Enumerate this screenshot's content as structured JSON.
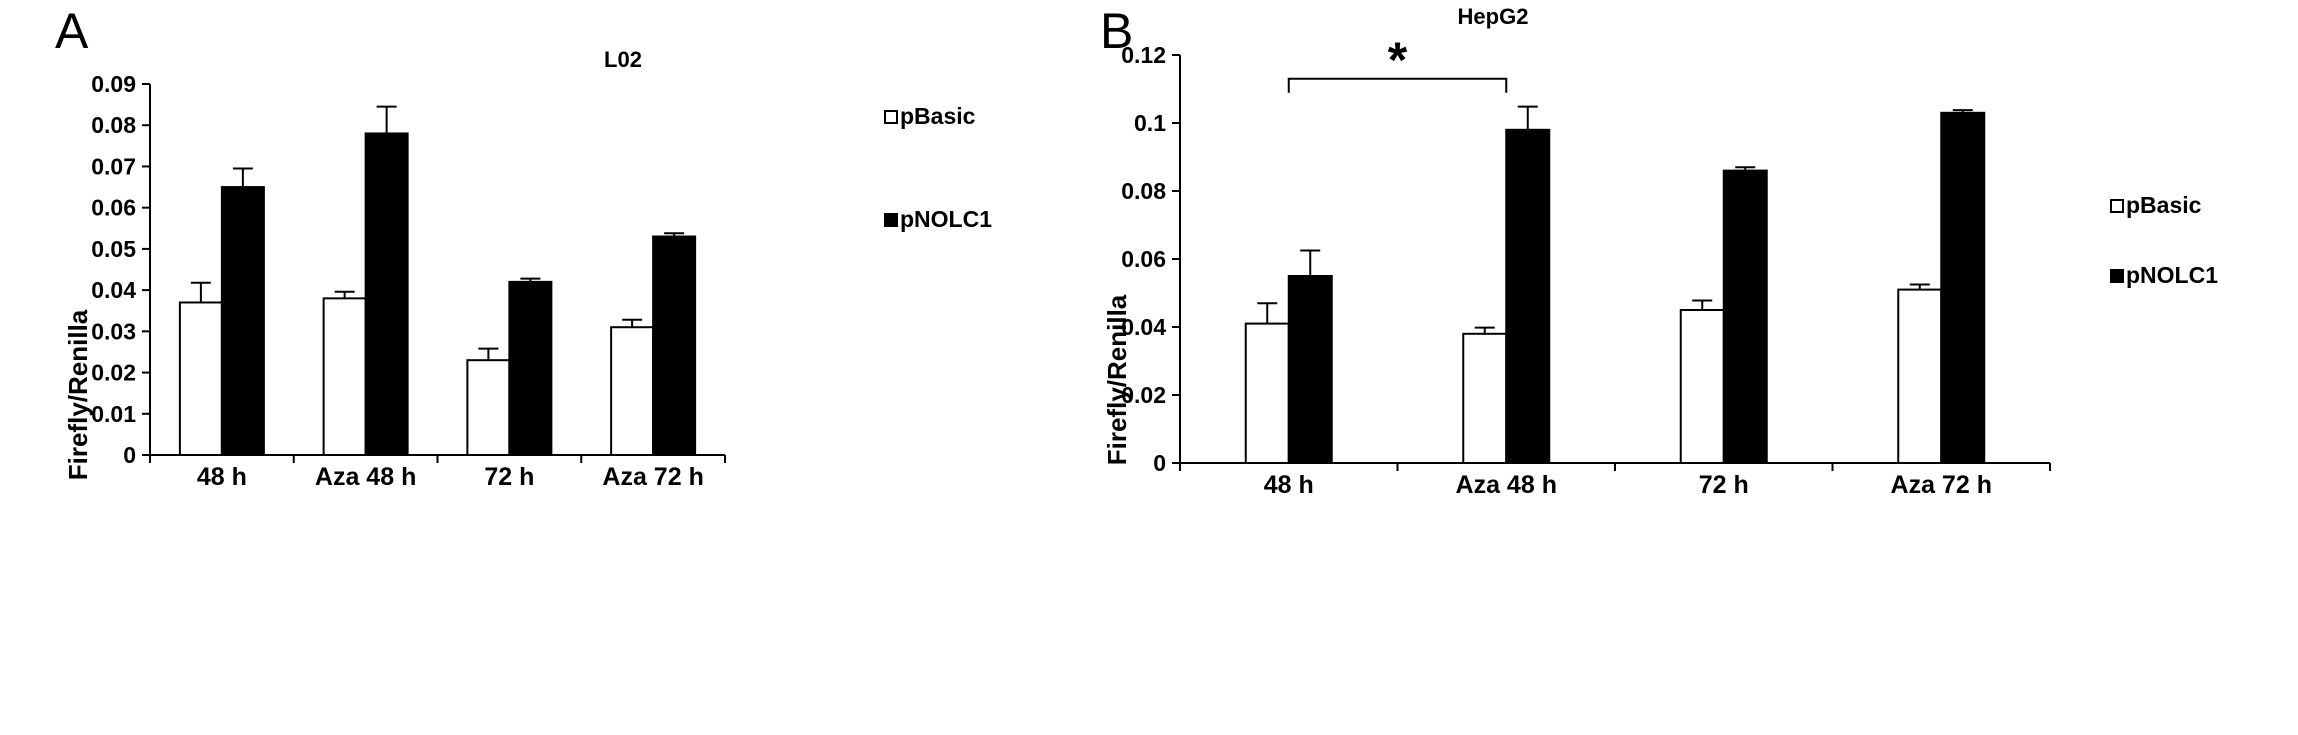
{
  "chart_data": [
    {
      "type": "bar",
      "panel": "A",
      "title": "L02",
      "ylabel": "Firefly/Renilla",
      "xlabel": "",
      "categories": [
        "48 h",
        "Aza 48 h",
        "72 h",
        "Aza 72  h"
      ],
      "ylim": [
        0,
        0.09
      ],
      "yticks": [
        0,
        0.01,
        0.02,
        0.03,
        0.04,
        0.05,
        0.06,
        0.07,
        0.08,
        0.09
      ],
      "ytick_labels": [
        "0",
        "0.01",
        "0.02",
        "0.03",
        "0.04",
        "0.05",
        "0.06",
        "0.07",
        "0.08",
        "0.09"
      ],
      "series": [
        {
          "name": "pBasic",
          "color": "#ffffff",
          "values": [
            0.037,
            0.038,
            0.023,
            0.031
          ],
          "errors": [
            0.0048,
            0.0016,
            0.0028,
            0.0018
          ]
        },
        {
          "name": "pNOLC1",
          "color": "#000000",
          "values": [
            0.065,
            0.078,
            0.042,
            0.053
          ],
          "errors": [
            0.0045,
            0.0065,
            0.0008,
            0.0008
          ]
        }
      ],
      "legend_position": "top-right",
      "grid": false
    },
    {
      "type": "bar",
      "panel": "B",
      "title": "HepG2",
      "ylabel": "Firefly/Renilla",
      "xlabel": "",
      "categories": [
        "48 h",
        "Aza 48 h",
        "72 h",
        "Aza 72  h"
      ],
      "ylim": [
        0,
        0.12
      ],
      "yticks": [
        0,
        0.02,
        0.04,
        0.06,
        0.08,
        0.1,
        0.12
      ],
      "ytick_labels": [
        "0",
        "0.02",
        "0.04",
        "0.06",
        "0.08",
        "0.1",
        "0.12"
      ],
      "series": [
        {
          "name": "pBasic",
          "color": "#ffffff",
          "values": [
            0.041,
            0.038,
            0.045,
            0.051
          ],
          "errors": [
            0.006,
            0.0018,
            0.0028,
            0.0015
          ]
        },
        {
          "name": "pNOLC1",
          "color": "#000000",
          "values": [
            0.055,
            0.098,
            0.086,
            0.103
          ],
          "errors": [
            0.0075,
            0.0068,
            0.001,
            0.0008
          ]
        }
      ],
      "annotations": [
        {
          "text": "*",
          "from_category": "48 h",
          "to_category": "Aza 48 h",
          "level": 0.113
        }
      ],
      "legend_position": "right",
      "grid": false
    }
  ]
}
